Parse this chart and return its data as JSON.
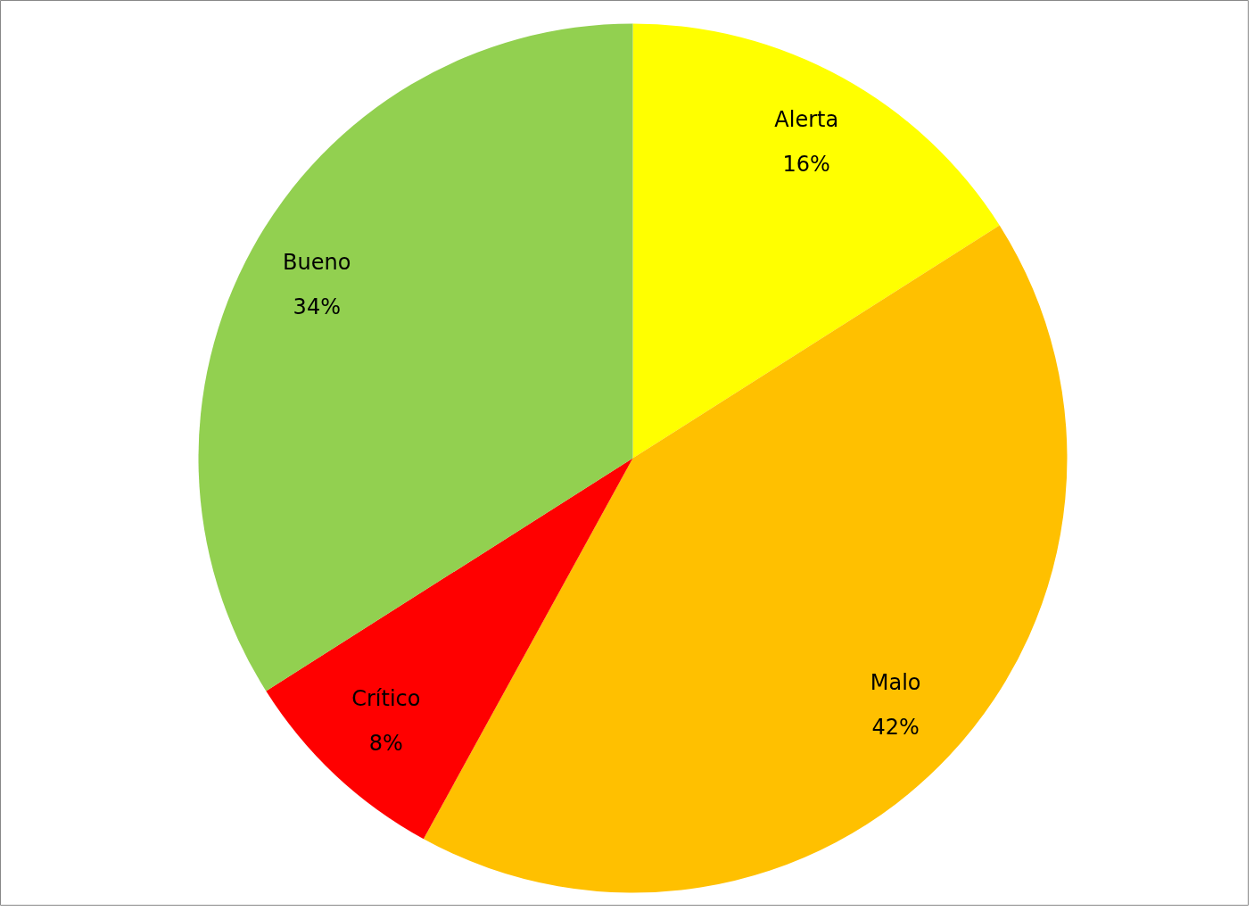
{
  "chart_data": {
    "type": "pie",
    "categories": [
      "Alerta",
      "Malo",
      "Crítico",
      "Bueno"
    ],
    "values": [
      16,
      42,
      8,
      34
    ],
    "value_labels": [
      "16%",
      "42%",
      "8%",
      "34%"
    ],
    "colors": [
      "#ffff00",
      "#ffc000",
      "#ff0000",
      "#92d050"
    ]
  }
}
